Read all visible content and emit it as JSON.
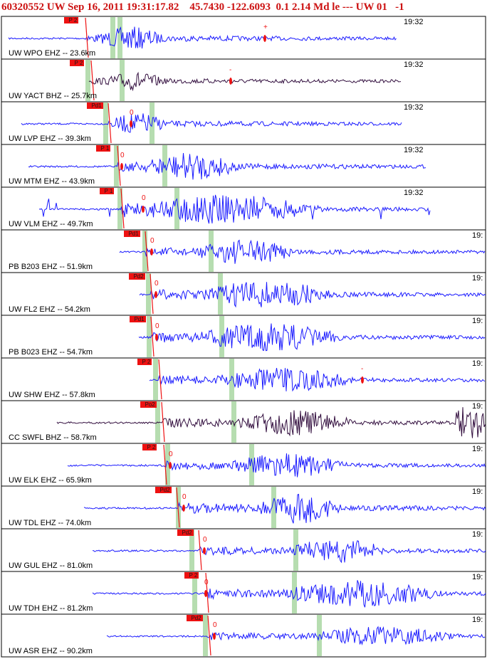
{
  "header": {
    "event_text": "60320552 UW Sep 16, 2011 19:31:17.82    45.7430 -122.6093  0.1 2.14 Md le --- UW 01   -1"
  },
  "colors": {
    "background": "#ffffff",
    "trace_blue": "#1a1aff",
    "trace_dark": "#330f3f",
    "pick_red": "#ee1111",
    "window_green": "#b6ddb0",
    "grid": "#000000",
    "title_red": "#cc1111"
  },
  "chart_data": {
    "type": "seismogram-record-section",
    "traces": [
      {
        "label": "UW WPO EHZ -- 23.6km",
        "time_label": "19:32",
        "pick": "P 2",
        "marker": "+",
        "color": "blue"
      },
      {
        "label": "UW YACT BHZ -- 25.7km",
        "time_label": "19:32",
        "pick": "P 2",
        "marker": "-",
        "color": "dark"
      },
      {
        "label": "UW LVP EHZ -- 39.3km",
        "time_label": "19:32",
        "pick": "Pd1",
        "marker": "0",
        "color": "blue"
      },
      {
        "label": "UW MTM EHZ -- 43.9km",
        "time_label": "19:32",
        "pick": "P 1",
        "marker": "0",
        "color": "blue"
      },
      {
        "label": "UW VLM EHZ -- 49.7km",
        "time_label": "19:32",
        "pick": "P 1",
        "marker": "0",
        "color": "blue"
      },
      {
        "label": "PB B203 EHZ -- 51.9km",
        "time_label": "19:",
        "pick": "Pd1",
        "marker": "0",
        "color": "blue"
      },
      {
        "label": "UW FL2 EHZ -- 54.2km",
        "time_label": "19:",
        "pick": "Pd2",
        "marker": "0",
        "color": "blue"
      },
      {
        "label": "PB B023 EHZ -- 54.7km",
        "time_label": "19:",
        "pick": "Pd1",
        "marker": "0",
        "color": "blue"
      },
      {
        "label": "UW SHW EHZ -- 57.8km",
        "time_label": "19:",
        "pick": "P 2",
        "marker": "-",
        "color": "blue"
      },
      {
        "label": "CC SWFL BHZ -- 58.7km",
        "time_label": "19:",
        "pick": "Po2",
        "marker": "",
        "color": "dark"
      },
      {
        "label": "UW ELK EHZ -- 65.9km",
        "time_label": "19:",
        "pick": "P 2",
        "marker": "0",
        "color": "blue"
      },
      {
        "label": "UW TDL EHZ -- 74.0km",
        "time_label": "19:",
        "pick": "Pd2",
        "marker": "0",
        "color": "blue"
      },
      {
        "label": "UW GUL EHZ -- 81.0km",
        "time_label": "19:",
        "pick": "Pd2",
        "marker": "0",
        "color": "blue"
      },
      {
        "label": "UW TDH EHZ -- 81.2km",
        "time_label": "19:",
        "pick": "P 2",
        "marker": "0",
        "color": "blue"
      },
      {
        "label": "UW ASR EHZ -- 90.2km",
        "time_label": "19:",
        "pick": "Pd2",
        "marker": "0",
        "color": "blue"
      }
    ]
  }
}
